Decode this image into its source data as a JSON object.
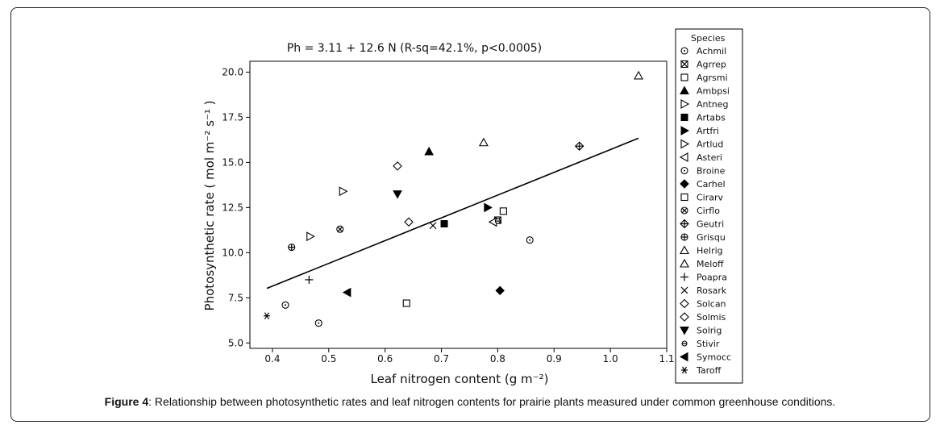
{
  "caption": {
    "label": "Figure 4",
    "text": ": Relationship between photosynthetic rates and leaf nitrogen contents for prairie plants measured under common greenhouse conditions."
  },
  "chart_data": {
    "type": "scatter",
    "title": "Ph = 3.11 + 12.6 N (R-sq=42.1%, p<0.0005)",
    "xlabel": "Leaf nitrogen content (g m⁻²)",
    "ylabel": "Photosynthetic rate ( mol m⁻² s⁻¹ )",
    "xlim": [
      0.36,
      1.1
    ],
    "ylim": [
      4.7,
      20.6
    ],
    "xticks": [
      0.4,
      0.5,
      0.6,
      0.7,
      0.8,
      0.9,
      1.0,
      1.1
    ],
    "xtick_labels": [
      "0.4",
      "0.5",
      "0.6",
      "0.7",
      "0.8",
      "0.9",
      "1.0",
      "1.1"
    ],
    "yticks": [
      5.0,
      7.5,
      10.0,
      12.5,
      15.0,
      17.5,
      20.0
    ],
    "ytick_labels": [
      "5.0",
      "7.5",
      "10.0",
      "12.5",
      "15.0",
      "17.5",
      "20.0"
    ],
    "legend_title": "Species",
    "legend_position": "right",
    "color": "#000000",
    "fit_line": {
      "x": [
        0.39,
        1.05
      ],
      "y": [
        8.02,
        16.34
      ]
    },
    "series": [
      {
        "name": "Achmil",
        "marker": "circle-dot",
        "points": [
          [
            0.423,
            7.1
          ]
        ]
      },
      {
        "name": "Agrrep",
        "marker": "square-x",
        "points": [
          [
            0.8,
            11.8
          ]
        ]
      },
      {
        "name": "Agrsmi",
        "marker": "square-open",
        "points": [
          [
            0.81,
            12.3
          ]
        ]
      },
      {
        "name": "Ambpsi",
        "marker": "triangle-filled",
        "points": [
          [
            0.678,
            15.6
          ]
        ]
      },
      {
        "name": "Antneg",
        "marker": "triangle-right-open",
        "points": [
          [
            0.467,
            10.9
          ]
        ]
      },
      {
        "name": "Artabs",
        "marker": "square-filled",
        "points": [
          [
            0.705,
            11.6
          ]
        ]
      },
      {
        "name": "Artfri",
        "marker": "triangle-right-filled",
        "points": [
          [
            0.782,
            12.5
          ]
        ]
      },
      {
        "name": "Artlud",
        "marker": "triangle-right-open",
        "points": [
          [
            0.525,
            13.4
          ]
        ]
      },
      {
        "name": "Asteri",
        "marker": "triangle-left-open",
        "points": [
          [
            0.792,
            11.7
          ]
        ]
      },
      {
        "name": "Broine",
        "marker": "circle-dot",
        "points": [
          [
            0.482,
            6.1
          ],
          [
            0.857,
            10.7
          ]
        ]
      },
      {
        "name": "Carhel",
        "marker": "diamond-filled",
        "points": [
          [
            0.804,
            7.9
          ]
        ]
      },
      {
        "name": "Cirarv",
        "marker": "square-open",
        "points": [
          [
            0.638,
            7.2
          ]
        ]
      },
      {
        "name": "Cirflo",
        "marker": "circle-x",
        "points": [
          [
            0.52,
            11.3
          ]
        ]
      },
      {
        "name": "Geutri",
        "marker": "diamond-plus",
        "points": [
          [
            0.945,
            15.9
          ]
        ]
      },
      {
        "name": "Grisqu",
        "marker": "circle-plus",
        "points": [
          [
            0.434,
            10.3
          ]
        ]
      },
      {
        "name": "Helrig",
        "marker": "triangle-open",
        "points": [
          [
            0.775,
            16.1
          ]
        ]
      },
      {
        "name": "Meloff",
        "marker": "triangle-open",
        "points": [
          [
            1.05,
            19.8
          ]
        ]
      },
      {
        "name": "Poapra",
        "marker": "plus",
        "points": [
          [
            0.465,
            8.5
          ]
        ]
      },
      {
        "name": "Rosark",
        "marker": "x",
        "points": [
          [
            0.685,
            11.5
          ]
        ]
      },
      {
        "name": "Solcan",
        "marker": "diamond-open",
        "points": [
          [
            0.642,
            11.7
          ]
        ]
      },
      {
        "name": "Solmis",
        "marker": "diamond-open",
        "points": [
          [
            0.622,
            14.8
          ]
        ]
      },
      {
        "name": "Solrig",
        "marker": "triangle-down-filled",
        "points": [
          [
            0.622,
            13.25
          ]
        ]
      },
      {
        "name": "Stivir",
        "marker": "circle-small",
        "points": [
          [
            0.8,
            11.75
          ]
        ]
      },
      {
        "name": "Symocc",
        "marker": "triangle-left-filled",
        "points": [
          [
            0.533,
            7.8
          ]
        ]
      },
      {
        "name": "Taroff",
        "marker": "asterisk",
        "points": [
          [
            0.39,
            6.5
          ]
        ]
      }
    ]
  }
}
